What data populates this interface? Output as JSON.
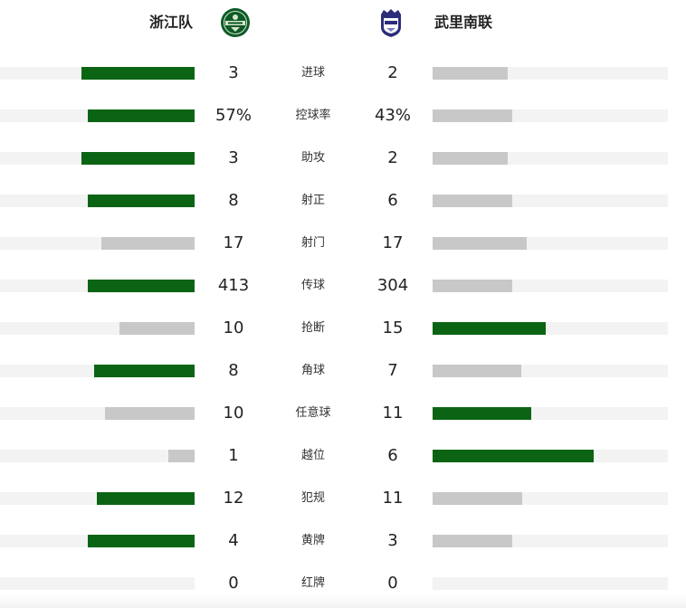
{
  "home": {
    "name": "浙江队",
    "logo_icon": "zhejiang-fc-crest",
    "color": "#0b6414"
  },
  "away": {
    "name": "武里南联",
    "logo_icon": "buriram-united-crest",
    "color": "#2b2d7a"
  },
  "colors": {
    "lead_bar": "#0b6414",
    "trail_bar": "#c8c8c8",
    "track": "#f3f3f3"
  },
  "stats": [
    {
      "label": "进球",
      "home_display": "3",
      "away_display": "2",
      "home_value": 3,
      "away_value": 2,
      "home_fill": 0.58,
      "away_fill": 0.32
    },
    {
      "label": "控球率",
      "home_display": "57%",
      "away_display": "43%",
      "home_value": 57,
      "away_value": 43,
      "home_fill": 0.55,
      "away_fill": 0.34
    },
    {
      "label": "助攻",
      "home_display": "3",
      "away_display": "2",
      "home_value": 3,
      "away_value": 2,
      "home_fill": 0.58,
      "away_fill": 0.32
    },
    {
      "label": "射正",
      "home_display": "8",
      "away_display": "6",
      "home_value": 8,
      "away_value": 6,
      "home_fill": 0.55,
      "away_fill": 0.34
    },
    {
      "label": "射门",
      "home_display": "17",
      "away_display": "17",
      "home_value": 17,
      "away_value": 17,
      "home_fill": 0.48,
      "away_fill": 0.4
    },
    {
      "label": "传球",
      "home_display": "413",
      "away_display": "304",
      "home_value": 413,
      "away_value": 304,
      "home_fill": 0.55,
      "away_fill": 0.34
    },
    {
      "label": "抢断",
      "home_display": "10",
      "away_display": "15",
      "home_value": 10,
      "away_value": 15,
      "home_fill": 0.385,
      "away_fill": 0.48
    },
    {
      "label": "角球",
      "home_display": "8",
      "away_display": "7",
      "home_value": 8,
      "away_value": 7,
      "home_fill": 0.515,
      "away_fill": 0.375
    },
    {
      "label": "任意球",
      "home_display": "10",
      "away_display": "11",
      "home_value": 10,
      "away_value": 11,
      "home_fill": 0.46,
      "away_fill": 0.42
    },
    {
      "label": "越位",
      "home_display": "1",
      "away_display": "6",
      "home_value": 1,
      "away_value": 6,
      "home_fill": 0.135,
      "away_fill": 0.685
    },
    {
      "label": "犯规",
      "home_display": "12",
      "away_display": "11",
      "home_value": 12,
      "away_value": 11,
      "home_fill": 0.5,
      "away_fill": 0.38
    },
    {
      "label": "黄牌",
      "home_display": "4",
      "away_display": "3",
      "home_value": 4,
      "away_value": 3,
      "home_fill": 0.55,
      "away_fill": 0.34
    },
    {
      "label": "红牌",
      "home_display": "0",
      "away_display": "0",
      "home_value": 0,
      "away_value": 0,
      "home_fill": 0,
      "away_fill": 0
    }
  ]
}
